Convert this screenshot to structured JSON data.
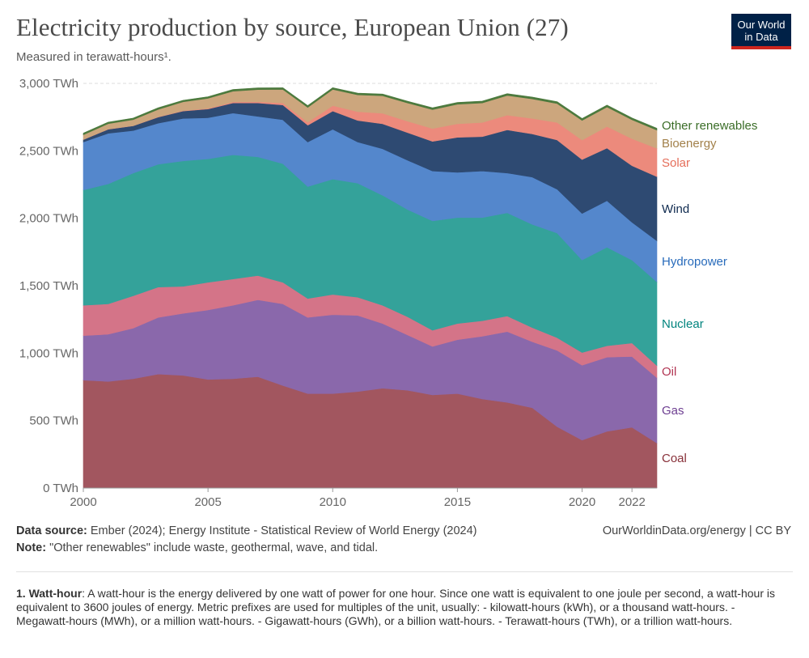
{
  "header": {
    "title": "Electricity production by source, European Union (27)",
    "subtitle": "Measured in terawatt-hours¹.",
    "logo_line1": "Our World",
    "logo_line2": "in Data"
  },
  "footer": {
    "source_label": "Data source:",
    "source_text": "Ember (2024); Energy Institute - Statistical Review of World Energy (2024)",
    "note_label": "Note:",
    "note_text": "\"Other renewables\" include waste, geothermal, wave, and tidal.",
    "url": "OurWorldinData.org/energy | CC BY",
    "footnote_label": "1. Watt-hour",
    "footnote_text": ": A watt-hour is the energy delivered by one watt of power for one hour. Since one watt is equivalent to one joule per second, a watt-hour is equivalent to 3600 joules of energy. Metric prefixes are used for multiples of the unit, usually: - kilowatt-hours (kWh), or a thousand watt-hours. - Megawatt-hours (MWh), or a million watt-hours. - Gigawatt-hours (GWh), or a billion watt-hours. - Terawatt-hours (TWh), or a trillion watt-hours."
  },
  "colors": {
    "Coal": "#a2565f",
    "Gas": "#8a68ab",
    "Oil": "#d47488",
    "Nuclear": "#34a29a",
    "Hydropower": "#5487cc",
    "Wind": "#2e4a72",
    "Solar": "#ec8a7c",
    "Bioenergy": "#cca67d",
    "Other renewables": "#4d7a3e"
  },
  "label_colors": {
    "Coal": "#883039",
    "Gas": "#6d3e91",
    "Oil": "#b13452",
    "Nuclear": "#00847e",
    "Hydropower": "#286bbb",
    "Wind": "#0f2a4f",
    "Solar": "#e56e5a",
    "Bioenergy": "#a2804a",
    "Other renewables": "#3a6d27"
  },
  "chart_data": {
    "type": "area",
    "stacked": true,
    "title": "Electricity production by source, European Union (27)",
    "subtitle": "Measured in terawatt-hours¹.",
    "x": [
      2000,
      2001,
      2002,
      2003,
      2004,
      2005,
      2006,
      2007,
      2008,
      2009,
      2010,
      2011,
      2012,
      2013,
      2014,
      2015,
      2016,
      2017,
      2018,
      2019,
      2020,
      2021,
      2022,
      2023
    ],
    "xticks": [
      2000,
      2005,
      2010,
      2015,
      2020,
      2022
    ],
    "ylim": [
      0,
      3000
    ],
    "yticks": [
      0,
      500,
      1000,
      1500,
      2000,
      2500,
      3000
    ],
    "yunit": "TWh",
    "grid": true,
    "legend": "right-inline",
    "series": [
      {
        "name": "Coal",
        "values": [
          800,
          790,
          810,
          845,
          835,
          805,
          810,
          825,
          760,
          700,
          700,
          715,
          740,
          725,
          690,
          700,
          660,
          635,
          595,
          455,
          355,
          420,
          450,
          333
        ]
      },
      {
        "name": "Gas",
        "values": [
          330,
          350,
          375,
          420,
          460,
          515,
          545,
          570,
          605,
          565,
          585,
          565,
          480,
          410,
          360,
          400,
          465,
          525,
          490,
          565,
          555,
          550,
          525,
          485
        ]
      },
      {
        "name": "Oil",
        "values": [
          225,
          225,
          240,
          225,
          200,
          205,
          195,
          180,
          160,
          140,
          150,
          135,
          135,
          135,
          120,
          120,
          115,
          115,
          105,
          95,
          95,
          85,
          100,
          90
        ]
      },
      {
        "name": "Nuclear",
        "values": [
          855,
          890,
          910,
          910,
          930,
          915,
          920,
          880,
          880,
          830,
          855,
          845,
          815,
          795,
          810,
          785,
          765,
          765,
          765,
          775,
          685,
          730,
          615,
          620
        ]
      },
      {
        "name": "Hydropower",
        "values": [
          355,
          375,
          315,
          305,
          315,
          305,
          310,
          300,
          325,
          330,
          370,
          305,
          345,
          365,
          370,
          335,
          345,
          295,
          350,
          325,
          345,
          345,
          280,
          305
        ]
      },
      {
        "name": "Wind",
        "values": [
          18,
          30,
          35,
          45,
          55,
          65,
          75,
          100,
          110,
          125,
          135,
          160,
          185,
          205,
          220,
          260,
          255,
          320,
          320,
          365,
          400,
          390,
          420,
          475
        ]
      },
      {
        "name": "Solar",
        "values": [
          1,
          1,
          1,
          2,
          3,
          4,
          7,
          9,
          15,
          22,
          40,
          65,
          78,
          85,
          95,
          100,
          105,
          110,
          115,
          130,
          145,
          160,
          200,
          210
        ]
      },
      {
        "name": "Bioenergy",
        "values": [
          35,
          40,
          45,
          55,
          65,
          75,
          80,
          90,
          100,
          110,
          120,
          125,
          130,
          135,
          140,
          145,
          145,
          145,
          145,
          140,
          145,
          145,
          140,
          135
        ]
      },
      {
        "name": "Other renewables",
        "values": [
          10,
          10,
          10,
          10,
          10,
          10,
          11,
          11,
          11,
          11,
          11,
          11,
          11,
          11,
          12,
          12,
          12,
          12,
          12,
          12,
          12,
          12,
          12,
          12
        ]
      }
    ]
  }
}
